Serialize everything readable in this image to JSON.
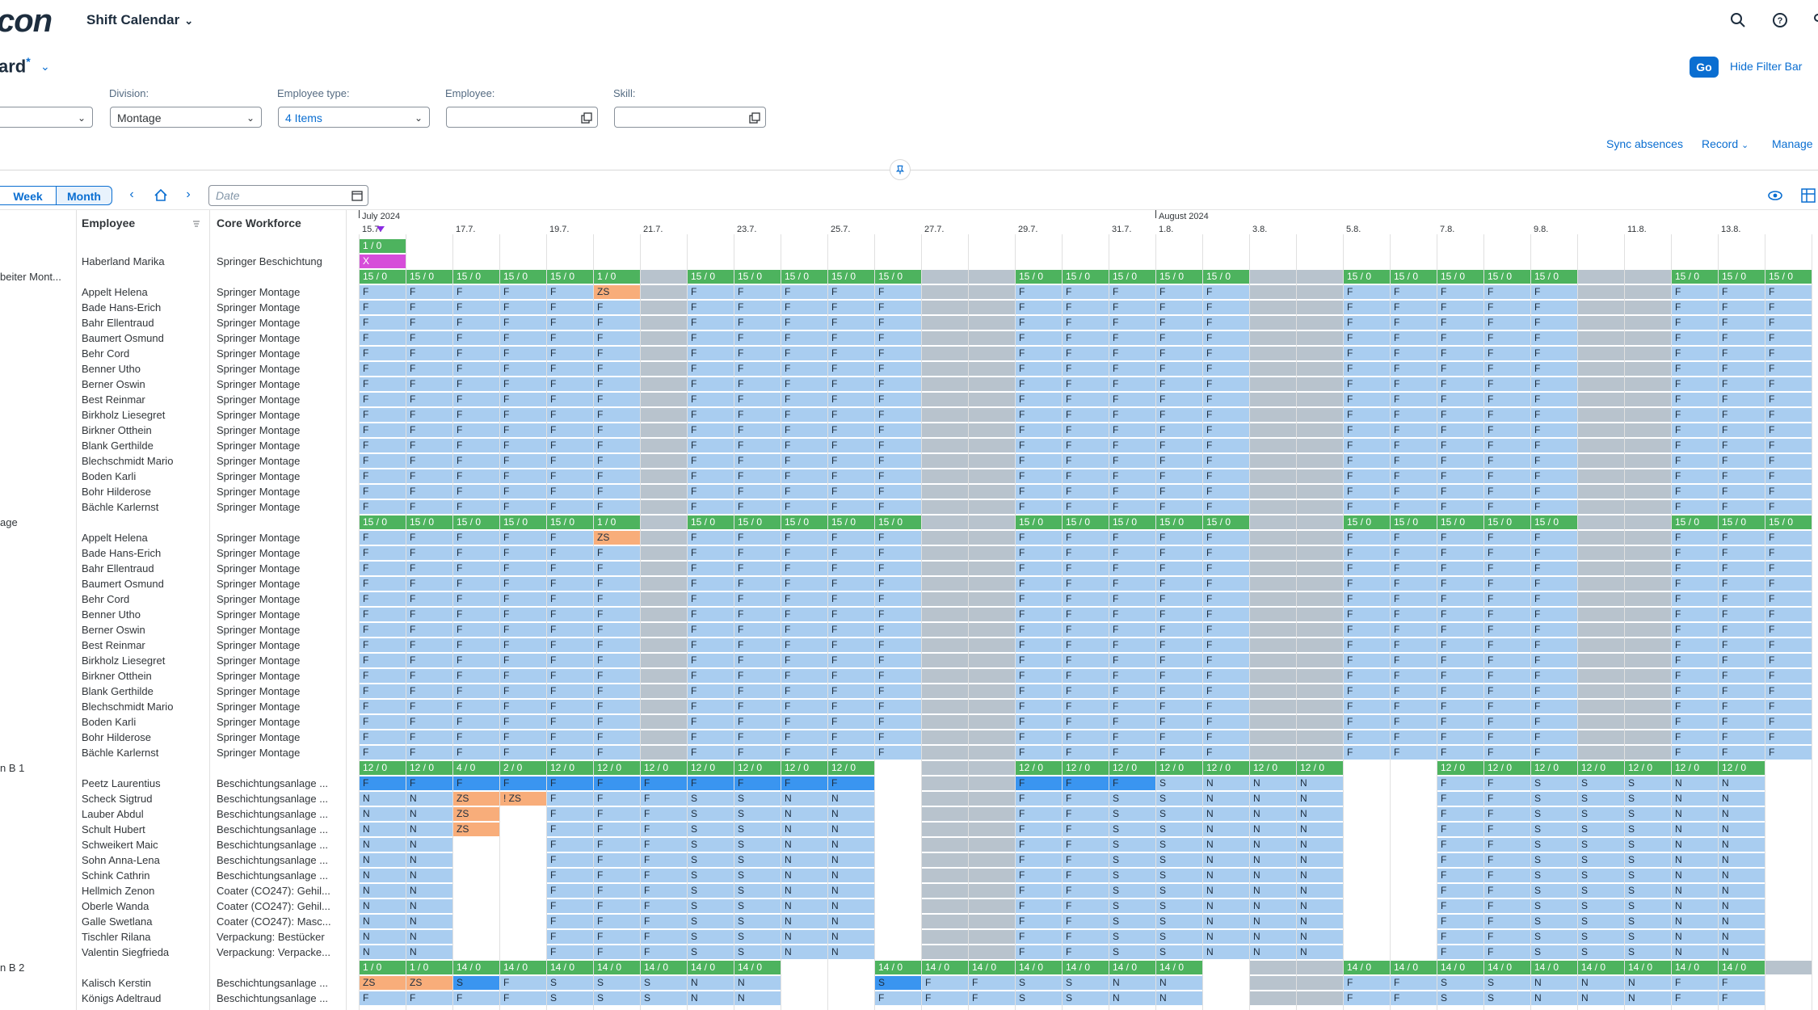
{
  "shell": {
    "logo": "con",
    "app_title": "Shift Calendar"
  },
  "variant": {
    "title": "ard",
    "modified": "*"
  },
  "filterbar": {
    "go": "Go",
    "hide": "Hide Filter Bar",
    "division_label": "Division:",
    "division_value": "Montage",
    "emptype_label": "Employee type:",
    "emptype_value": "4 Items",
    "employee_label": "Employee:",
    "skill_label": "Skill:"
  },
  "actions": {
    "sync": "Sync absences",
    "record": "Record",
    "manage": "Manage"
  },
  "toolbar": {
    "week": "Week",
    "month": "Month",
    "date_placeholder": "Date"
  },
  "columns": {
    "employee": "Employee",
    "core": "Core Workforce"
  },
  "timeline": {
    "months": [
      {
        "label": "July 2024",
        "day": 0
      },
      {
        "label": "August 2024",
        "day": 17
      }
    ],
    "day_labels": [
      {
        "label": "15.7.",
        "day": 0
      },
      {
        "label": "17.7.",
        "day": 2
      },
      {
        "label": "19.7.",
        "day": 4
      },
      {
        "label": "21.7.",
        "day": 6
      },
      {
        "label": "23.7.",
        "day": 8
      },
      {
        "label": "25.7.",
        "day": 10
      },
      {
        "label": "27.7.",
        "day": 12
      },
      {
        "label": "29.7.",
        "day": 14
      },
      {
        "label": "31.7.",
        "day": 16
      },
      {
        "label": "1.8.",
        "day": 17
      },
      {
        "label": "3.8.",
        "day": 19
      },
      {
        "label": "5.8.",
        "day": 21
      },
      {
        "label": "7.8.",
        "day": 23
      },
      {
        "label": "9.8.",
        "day": 25
      },
      {
        "label": "11.8.",
        "day": 27
      },
      {
        "label": "13.8.",
        "day": 29
      }
    ]
  },
  "colors": {
    "green": "#4db35e",
    "light": "#a9cdf0",
    "blue": "#3a95f0",
    "orange": "#f8ad7a",
    "magenta": "#d64dd9",
    "weekend": "#b8c3cd"
  },
  "rows": [
    {
      "g": "",
      "n": "",
      "c": "",
      "p": "G",
      "v": "1 / 0"
    },
    {
      "g": "",
      "n": "Haberland Marika",
      "c": "Springer Beschichtung",
      "p": "X"
    },
    {
      "g": "beiter Mont...",
      "n": "",
      "c": "",
      "p": "TOP",
      "v": "15 / 0",
      "ex": {
        "5": "1 / 0"
      }
    },
    {
      "g": "",
      "n": "Appelt Helena",
      "c": "Springer Montage",
      "p": "F",
      "ex": {
        "5": "ZS"
      }
    },
    {
      "g": "",
      "n": "Bade Hans-Erich",
      "c": "Springer Montage",
      "p": "F"
    },
    {
      "g": "",
      "n": "Bahr Ellentraud",
      "c": "Springer Montage",
      "p": "F"
    },
    {
      "g": "",
      "n": "Baumert Osmund",
      "c": "Springer Montage",
      "p": "F"
    },
    {
      "g": "",
      "n": "Behr Cord",
      "c": "Springer Montage",
      "p": "F"
    },
    {
      "g": "",
      "n": "Benner Utho",
      "c": "Springer Montage",
      "p": "F"
    },
    {
      "g": "",
      "n": "Berner Oswin",
      "c": "Springer Montage",
      "p": "F"
    },
    {
      "g": "",
      "n": "Best Reinmar",
      "c": "Springer Montage",
      "p": "F"
    },
    {
      "g": "",
      "n": "Birkholz Liesegret",
      "c": "Springer Montage",
      "p": "F"
    },
    {
      "g": "",
      "n": "Birkner Otthein",
      "c": "Springer Montage",
      "p": "F"
    },
    {
      "g": "",
      "n": "Blank Gerthilde",
      "c": "Springer Montage",
      "p": "F"
    },
    {
      "g": "",
      "n": "Blechschmidt Mario",
      "c": "Springer Montage",
      "p": "F"
    },
    {
      "g": "",
      "n": "Boden Karli",
      "c": "Springer Montage",
      "p": "F"
    },
    {
      "g": "",
      "n": "Bohr Hilderose",
      "c": "Springer Montage",
      "p": "F"
    },
    {
      "g": "",
      "n": "Bächle Karlernst",
      "c": "Springer Montage",
      "p": "F"
    },
    {
      "g": "age",
      "n": "",
      "c": "",
      "p": "TOP",
      "v": "15 / 0",
      "ex": {
        "5": "1 / 0"
      }
    },
    {
      "g": "",
      "n": "Appelt Helena",
      "c": "Springer Montage",
      "p": "F",
      "ex": {
        "5": "ZS"
      }
    },
    {
      "g": "",
      "n": "Bade Hans-Erich",
      "c": "Springer Montage",
      "p": "F"
    },
    {
      "g": "",
      "n": "Bahr Ellentraud",
      "c": "Springer Montage",
      "p": "F"
    },
    {
      "g": "",
      "n": "Baumert Osmund",
      "c": "Springer Montage",
      "p": "F"
    },
    {
      "g": "",
      "n": "Behr Cord",
      "c": "Springer Montage",
      "p": "F"
    },
    {
      "g": "",
      "n": "Benner Utho",
      "c": "Springer Montage",
      "p": "F"
    },
    {
      "g": "",
      "n": "Berner Oswin",
      "c": "Springer Montage",
      "p": "F"
    },
    {
      "g": "",
      "n": "Best Reinmar",
      "c": "Springer Montage",
      "p": "F"
    },
    {
      "g": "",
      "n": "Birkholz Liesegret",
      "c": "Springer Montage",
      "p": "F"
    },
    {
      "g": "",
      "n": "Birkner Otthein",
      "c": "Springer Montage",
      "p": "F"
    },
    {
      "g": "",
      "n": "Blank Gerthilde",
      "c": "Springer Montage",
      "p": "F"
    },
    {
      "g": "",
      "n": "Blechschmidt Mario",
      "c": "Springer Montage",
      "p": "F"
    },
    {
      "g": "",
      "n": "Boden Karli",
      "c": "Springer Montage",
      "p": "F"
    },
    {
      "g": "",
      "n": "Bohr Hilderose",
      "c": "Springer Montage",
      "p": "F"
    },
    {
      "g": "",
      "n": "Bächle Karlernst",
      "c": "Springer Montage",
      "p": "F"
    },
    {
      "g": "n B 1",
      "n": "",
      "c": "",
      "p": "B1TOP",
      "v": "12 / 0",
      "ex": {
        "2": "4 / 0",
        "3": "2 / 0"
      }
    },
    {
      "g": "",
      "n": "Peetz Laurentius",
      "c": "Beschichtungsanlage ...",
      "p": "PEETZ"
    },
    {
      "g": "",
      "n": "Scheck Sigtrud",
      "c": "Beschichtungsanlage ...",
      "p": "B1",
      "ex": {
        "2": "ZS",
        "3": "! ZS"
      }
    },
    {
      "g": "",
      "n": "Lauber Abdul",
      "c": "Beschichtungsanlage ...",
      "p": "B1",
      "ex": {
        "2": "ZS"
      }
    },
    {
      "g": "",
      "n": "Schult Hubert",
      "c": "Beschichtungsanlage ...",
      "p": "B1",
      "ex": {
        "2": "ZS"
      }
    },
    {
      "g": "",
      "n": "Schweikert Maic",
      "c": "Beschichtungsanlage ...",
      "p": "B1"
    },
    {
      "g": "",
      "n": "Sohn Anna-Lena",
      "c": "Beschichtungsanlage ...",
      "p": "B1"
    },
    {
      "g": "",
      "n": "Schink Cathrin",
      "c": "Beschichtungsanlage ...",
      "p": "B1"
    },
    {
      "g": "",
      "n": "Hellmich Zenon",
      "c": "Coater (CO247): Gehil...",
      "p": "B1"
    },
    {
      "g": "",
      "n": "Oberle Wanda",
      "c": "Coater (CO247): Gehil...",
      "p": "B1"
    },
    {
      "g": "",
      "n": "Galle Swetlana",
      "c": "Coater (CO247): Masc...",
      "p": "B1"
    },
    {
      "g": "",
      "n": "Tischler Rilana",
      "c": "Verpackung: Bestücker",
      "p": "B1"
    },
    {
      "g": "",
      "n": "Valentin Siegfrieda",
      "c": "Verpackung: Verpacke...",
      "p": "B1"
    },
    {
      "g": "n B 2",
      "n": "",
      "c": "",
      "p": "B2TOP",
      "v": "14 / 0",
      "ex": {
        "0": "1 / 0",
        "1": "1 / 0"
      }
    },
    {
      "g": "",
      "n": "Kalisch Kerstin",
      "c": "Beschichtungsanlage ...",
      "p": "B2A"
    },
    {
      "g": "",
      "n": "Königs Adeltraud",
      "c": "Beschichtungsanlage ...",
      "p": "B2B"
    }
  ]
}
